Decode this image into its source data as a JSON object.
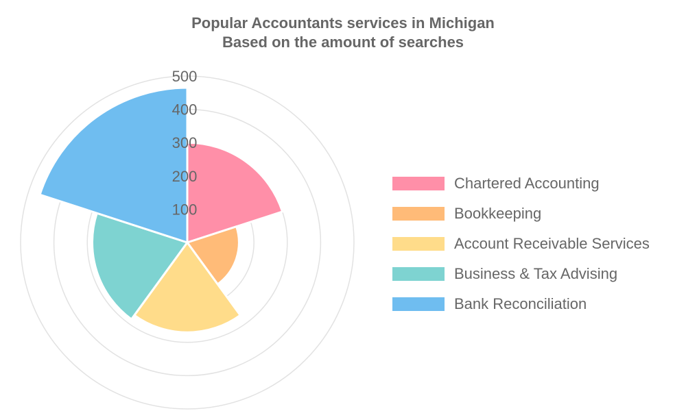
{
  "title_line1": "Popular Accountants services in Michigan",
  "title_line2": "Based on the amount of searches",
  "chart_data": {
    "type": "polarArea",
    "categories": [
      "Chartered Accounting",
      "Bookkeeping",
      "Account Receivable Services",
      "Business & Tax Advising",
      "Bank Reconciliation"
    ],
    "values": [
      300,
      155,
      270,
      285,
      465
    ],
    "colors": [
      "#ff8fa8",
      "#ffbb78",
      "#ffdc8a",
      "#7ed3d1",
      "#6fbdf0"
    ],
    "r_ticks": [
      100,
      200,
      300,
      400,
      500
    ],
    "rlim": [
      0,
      500
    ],
    "grid": true,
    "legend_position": "right"
  }
}
